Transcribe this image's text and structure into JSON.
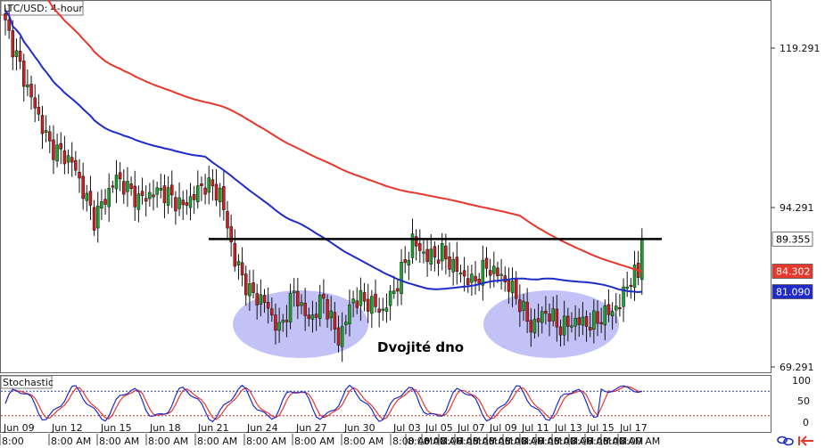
{
  "chart_data": {
    "type": "candlestick",
    "title": "LTC/USD: 4-hour",
    "price_axis": {
      "ticks": [
        "119.291",
        "94.291",
        "69.291"
      ]
    },
    "price_badges": [
      {
        "value": "89.355",
        "bg": "#ffffff",
        "fg": "#000000"
      },
      {
        "value": "84.302",
        "bg": "#e8372b",
        "fg": "#ffffff"
      },
      {
        "value": "81.090",
        "bg": "#1f2bc8",
        "fg": "#ffffff"
      }
    ],
    "date_labels": [
      "Jun 09",
      "Jun 12",
      "Jun 15",
      "Jun 18",
      "Jun 21",
      "Jun 24",
      "Jun 27",
      "Jun 30",
      "Jul 03",
      "Jul 05",
      "Jul 07",
      "Jul 09",
      "Jul 11",
      "Jul 13",
      "Jul 15",
      "Jul 17"
    ],
    "time_labels": [
      "8:00",
      "8:00 AM",
      "8:00 AM",
      "8:00 AM",
      "8:00 AM",
      "8:00 AM",
      "8:00 AM",
      "8:00 AM",
      "8:00 AM",
      "8:00 AM",
      "8:00 AM",
      "8:00 AM",
      "8:00 AM",
      "8:00 AM",
      "8:00 AM",
      "8:00 AM",
      "8:00 AM",
      "8:00 AM",
      "8:00 AM",
      "8:00 AM",
      "8:00 AM",
      "8:00 AM",
      "8:00 AM"
    ],
    "annotation": "Dvojité dno",
    "resistance_level": 89.355,
    "stochastic": {
      "label": "Stochastic",
      "ticks": [
        "100",
        "50",
        "0"
      ],
      "upper": 80,
      "lower": 20
    },
    "colors": {
      "sma_fast": "#1f2bc8",
      "sma_slow": "#e8372b",
      "bull": "#1aa52a",
      "bear": "#cc2020",
      "ellipse": "#8f8ff0",
      "stoch_k": "#1f2bc8",
      "stoch_d": "#e8372b"
    },
    "key_points": [
      {
        "x": 0,
        "close": 123.0
      },
      {
        "x": 6,
        "close": 113.0
      },
      {
        "x": 12,
        "close": 104.0
      },
      {
        "x": 18,
        "close": 101.5
      },
      {
        "x": 24,
        "close": 92.5
      },
      {
        "x": 30,
        "close": 99.0
      },
      {
        "x": 36,
        "close": 95.5
      },
      {
        "x": 42,
        "close": 97.0
      },
      {
        "x": 48,
        "close": 94.5
      },
      {
        "x": 54,
        "close": 98.0
      },
      {
        "x": 58,
        "close": 96.5
      },
      {
        "x": 62,
        "close": 86.0
      },
      {
        "x": 66,
        "close": 81.0
      },
      {
        "x": 70,
        "close": 79.5
      },
      {
        "x": 74,
        "close": 75.0
      },
      {
        "x": 78,
        "close": 81.0
      },
      {
        "x": 82,
        "close": 76.5
      },
      {
        "x": 86,
        "close": 80.0
      },
      {
        "x": 90,
        "close": 73.5
      },
      {
        "x": 94,
        "close": 80.0
      },
      {
        "x": 98,
        "close": 79.5
      },
      {
        "x": 102,
        "close": 78.0
      },
      {
        "x": 106,
        "close": 82.5
      },
      {
        "x": 110,
        "close": 89.0
      },
      {
        "x": 114,
        "close": 86.5
      },
      {
        "x": 118,
        "close": 87.0
      },
      {
        "x": 122,
        "close": 84.5
      },
      {
        "x": 126,
        "close": 82.5
      },
      {
        "x": 130,
        "close": 85.0
      },
      {
        "x": 134,
        "close": 83.5
      },
      {
        "x": 138,
        "close": 80.5
      },
      {
        "x": 142,
        "close": 75.5
      },
      {
        "x": 146,
        "close": 78.0
      },
      {
        "x": 150,
        "close": 75.5
      },
      {
        "x": 154,
        "close": 76.5
      },
      {
        "x": 158,
        "close": 76.0
      },
      {
        "x": 162,
        "close": 77.5
      },
      {
        "x": 166,
        "close": 79.0
      },
      {
        "x": 168,
        "close": 82.5
      },
      {
        "x": 171,
        "close": 84.0
      },
      {
        "x": 172,
        "close": 89.4
      }
    ]
  }
}
